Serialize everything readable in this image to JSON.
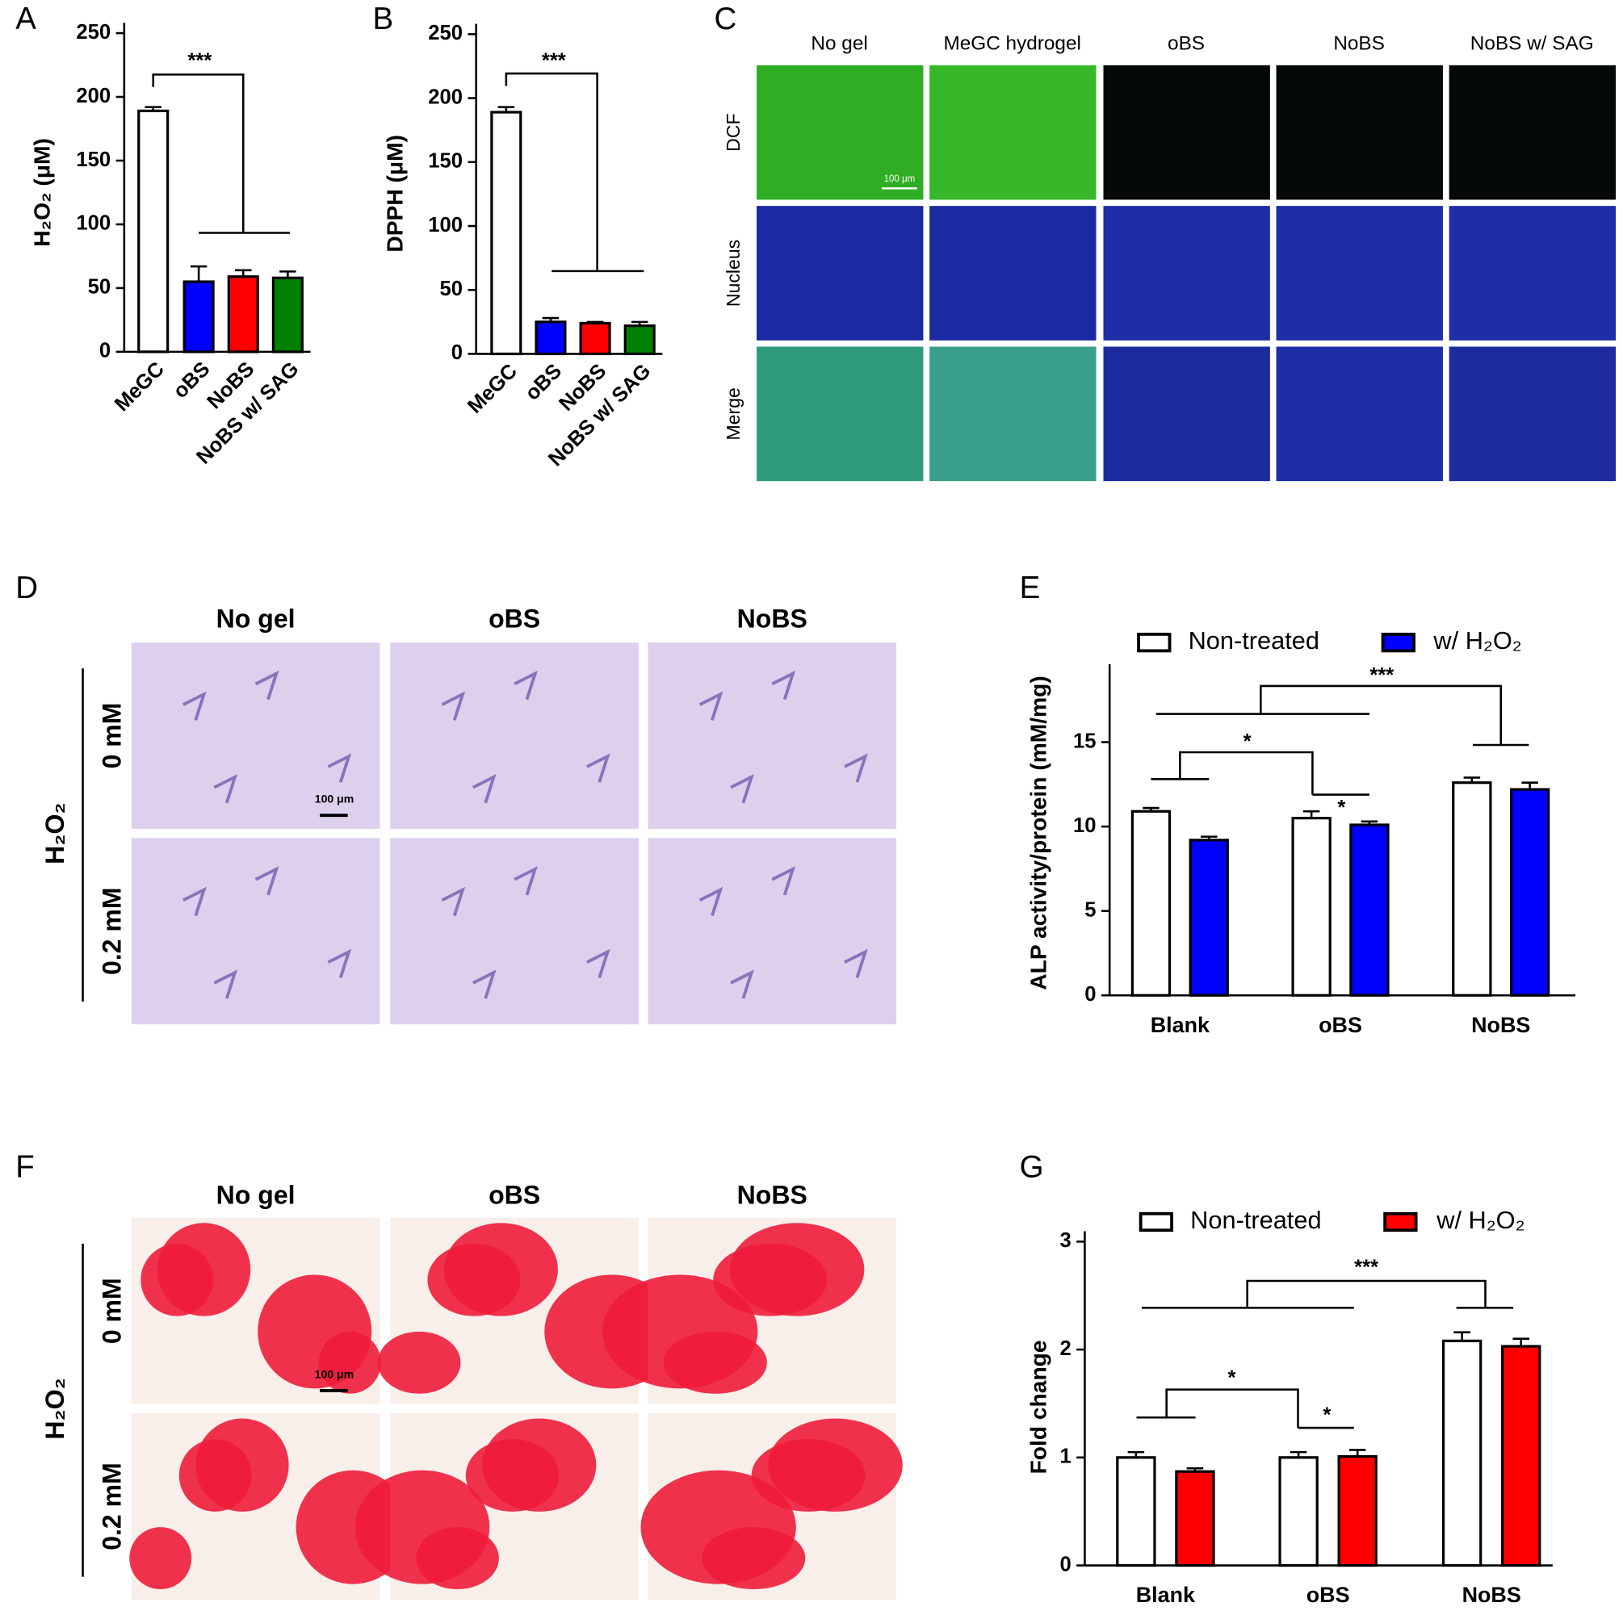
{
  "chart_data": [
    {
      "type": "bar",
      "panel": "A",
      "y_label": "H₂O₂ (μM)",
      "categories": [
        "MeGC",
        "oBS",
        "NoBS",
        "NoBS w/ SAG"
      ],
      "values": [
        189,
        55,
        59,
        58
      ],
      "errors": [
        3,
        12,
        5,
        5
      ],
      "colors": [
        "#ffffff",
        "#0000ff",
        "#ff0000",
        "#008000"
      ],
      "ylim": [
        0,
        250
      ],
      "yticks": [
        0,
        50,
        100,
        150,
        200,
        250
      ],
      "annotations": [
        "***"
      ]
    },
    {
      "type": "bar",
      "panel": "B",
      "y_label": "DPPH (μM)",
      "categories": [
        "MeGC",
        "oBS",
        "NoBS",
        "NoBS w/ SAG"
      ],
      "values": [
        189,
        25,
        24,
        22
      ],
      "errors": [
        4,
        3,
        1,
        3
      ],
      "colors": [
        "#ffffff",
        "#0000ff",
        "#ff0000",
        "#008000"
      ],
      "ylim": [
        0,
        250
      ],
      "yticks": [
        0,
        50,
        100,
        150,
        200,
        250
      ],
      "annotations": [
        "***"
      ]
    },
    {
      "type": "bar",
      "panel": "E",
      "y_label": "ALP activity/protein  (mM/mg)",
      "categories": [
        "Blank",
        "oBS",
        "NoBS"
      ],
      "series": [
        {
          "name": "Non-treated",
          "color": "#ffffff",
          "values": [
            10.9,
            10.5,
            12.6
          ],
          "errors": [
            0.2,
            0.4,
            0.3
          ]
        },
        {
          "name": "w/ H₂O₂",
          "color": "#0000ff",
          "values": [
            9.2,
            10.1,
            12.2
          ],
          "errors": [
            0.2,
            0.2,
            0.4
          ]
        }
      ],
      "ylim": [
        0,
        19
      ],
      "yticks": [
        0,
        5,
        10,
        15
      ],
      "legend": "top",
      "annotations": [
        "***",
        "*",
        "*"
      ]
    },
    {
      "type": "bar",
      "panel": "G",
      "y_label": "Fold change",
      "categories": [
        "Blank",
        "oBS",
        "NoBS"
      ],
      "series": [
        {
          "name": "Non-treated",
          "color": "#ffffff",
          "values": [
            1.0,
            1.0,
            2.08
          ],
          "errors": [
            0.05,
            0.05,
            0.08
          ]
        },
        {
          "name": "w/ H₂O₂",
          "color": "#ff0000",
          "values": [
            0.87,
            1.01,
            2.03
          ],
          "errors": [
            0.03,
            0.06,
            0.07
          ]
        }
      ],
      "ylim": [
        0,
        3
      ],
      "yticks": [
        0,
        1,
        2,
        3
      ],
      "legend": "top",
      "annotations": [
        "***",
        "*",
        "*"
      ]
    }
  ],
  "image_panels": [
    {
      "panel": "C",
      "columns": [
        "No gel",
        "MeGC hydrogel",
        "oBS",
        "NoBS",
        "NoBS w/ SAG"
      ],
      "rows": [
        "DCF",
        "Nucleus",
        "Merge"
      ],
      "scale_bar": "100 μm"
    },
    {
      "panel": "D",
      "row_title": "H₂O₂",
      "columns": [
        "No gel",
        "oBS",
        "NoBS"
      ],
      "rows": [
        "0 mM",
        "0.2 mM"
      ],
      "scale_bar": "100 μm"
    },
    {
      "panel": "F",
      "row_title": "H₂O₂",
      "columns": [
        "No gel",
        "oBS",
        "NoBS"
      ],
      "rows": [
        "0 mM",
        "0.2 mM"
      ],
      "scale_bar": "100 μm"
    }
  ]
}
